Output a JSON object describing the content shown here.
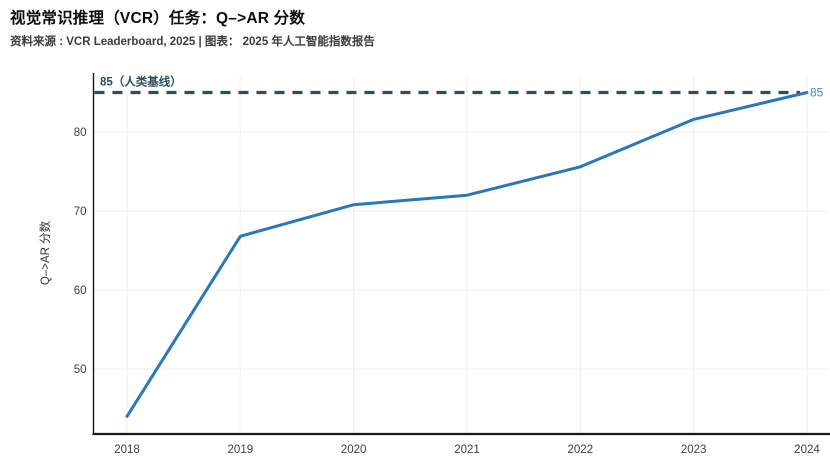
{
  "page": {
    "title": "视觉常识推理（VCR）任务：Q–>AR 分数",
    "source_line": "资料来源 : VCR Leaderboard, 2025 | 图表： 2025 年人工智能指数报告"
  },
  "chart_data": {
    "type": "line",
    "title": "视觉常识推理（VCR）任务：Q–>AR 分数",
    "source": "资料来源 : VCR Leaderboard, 2025 | 图表： 2025 年人工智能指数报告",
    "x": [
      2018,
      2019,
      2020,
      2021,
      2022,
      2023,
      2024
    ],
    "series": [
      {
        "name": "Q–>AR 分数",
        "values": [
          44.0,
          66.8,
          70.8,
          72.0,
          75.6,
          81.6,
          85.0
        ],
        "color": "#2878ba"
      }
    ],
    "baseline": {
      "value": 85,
      "label": "85（人类基线）",
      "end_label": "85",
      "color": "#2b4f5b",
      "end_label_color": "#3f8ccb"
    },
    "xlabel": "",
    "ylabel": "Q–>AR 分数",
    "yticks": [
      50,
      60,
      70,
      80
    ],
    "xticks": [
      "2018",
      "2019",
      "2020",
      "2021",
      "2022",
      "2023",
      "2024"
    ],
    "ylim": [
      41.5,
      87.5
    ],
    "grid": true,
    "legend": "none",
    "colors": {
      "grid": "#f1efee",
      "axis": "#1a1a1a",
      "tick_text": "#404040"
    }
  }
}
